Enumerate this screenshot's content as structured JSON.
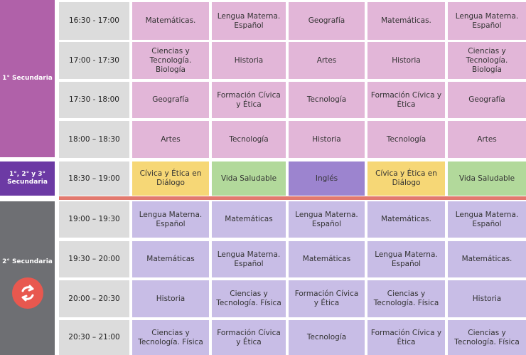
{
  "groups": [
    {
      "label": "1° Secundaria",
      "color": "#b061a9"
    },
    {
      "label": "1°, 2° y 3° Secundaria",
      "color": "#6c3aa4"
    },
    {
      "label": "2° Secundaria",
      "color": "#6e6f73",
      "icon": "swap-arrows-icon"
    }
  ],
  "schedule": [
    {
      "time": "16:30 - 17:00",
      "cells": [
        "Matemáticas.",
        "Lengua Materna. Español",
        "Geografía",
        "Matemáticas.",
        "Lengua Materna. Español"
      ]
    },
    {
      "time": "17:00 - 17:30",
      "cells": [
        "Ciencias y Tecnología. Biología",
        "Historia",
        "Artes",
        "Historia",
        "Ciencias y Tecnología. Biología"
      ]
    },
    {
      "time": "17:30 - 18:00",
      "cells": [
        "Geografía",
        "Formación Cívica y Ética",
        "Tecnología",
        "Formación Cívica y Ética",
        "Geografía"
      ]
    },
    {
      "time": "18:00 – 18:30",
      "cells": [
        "Artes",
        "Tecnología",
        "Historia",
        "Tecnología",
        "Artes"
      ]
    },
    {
      "time": "18:30 – 19:00",
      "cells": [
        "Cívica y Ética en Diálogo",
        "Vida Saludable",
        "Inglés",
        "Cívica y Ética en Diálogo",
        "Vida Saludable"
      ]
    },
    {
      "time": "19:00 – 19:30",
      "cells": [
        "Lengua Materna. Español",
        "Matemáticas",
        "Lengua Materna. Español",
        "Matemáticas.",
        "Lengua Materna. Español"
      ]
    },
    {
      "time": "19:30 – 20:00",
      "cells": [
        "Matemáticas",
        "Lengua Materna. Español",
        "Matemáticas",
        "Lengua Materna. Español",
        "Matemáticas."
      ]
    },
    {
      "time": "20:00 – 20:30",
      "cells": [
        "Historia",
        "Ciencias y Tecnología. Física",
        "Formación Cívica y Ética",
        "Ciencias y Tecnología. Física",
        "Historia"
      ]
    },
    {
      "time": "20:30 – 21:00",
      "cells": [
        "Ciencias y Tecnología. Física",
        "Formación Cívica y Ética",
        "Tecnología",
        "Formación Cívica y Ética",
        "Ciencias y Tecnología. Física"
      ]
    }
  ],
  "colors": {
    "pink": "#e2b6d8",
    "lavender": "#c8bde6",
    "yellow": "#f6d776",
    "green": "#b2d99b",
    "purple": "#9c84cf",
    "time": "#dcdcdc",
    "divider": "#e2796e"
  }
}
